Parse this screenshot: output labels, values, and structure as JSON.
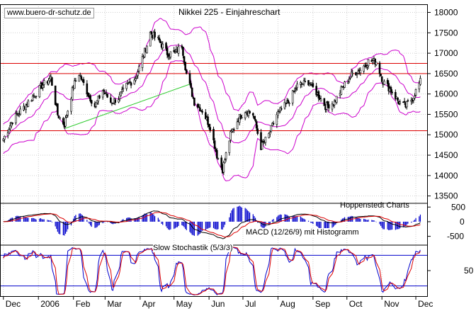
{
  "watermark": "www.buero-dr-schutz.de",
  "source_label": "Hoppenstedt Charts",
  "colors": {
    "bollinger": "#cc00cc",
    "support": "#dd0000",
    "trendline": "#33cc33",
    "macd_hist": "#0000cc",
    "macd_line": "#000000",
    "macd_signal": "#dd0000",
    "stoch_k": "#0000cc",
    "stoch_d": "#dd0000"
  },
  "chart_data": [
    {
      "type": "candlestick",
      "title": "Nikkei 225 - Einjahreschart",
      "x_tick_labels": [
        "Dec",
        "2006",
        "Feb",
        "Mar",
        "Apr",
        "May",
        "Jun",
        "Jul",
        "Aug",
        "Sep",
        "Oct",
        "Nov",
        "Dec"
      ],
      "y_tick_labels": [
        "18000",
        "17500",
        "17000",
        "16500",
        "16000",
        "15500",
        "15000",
        "14500",
        "14000",
        "13500"
      ],
      "ylim": [
        13250,
        18200
      ],
      "grid": true,
      "horizontal_lines": [
        16750,
        16500,
        15100
      ],
      "trendline": {
        "from": [
          "2006-01-24",
          15150
        ],
        "to": [
          "2006-05-16",
          16250
        ]
      },
      "close_anchors": [
        [
          "2005-12-01",
          14900
        ],
        [
          "2005-12-10",
          15400
        ],
        [
          "2005-12-20",
          15700
        ],
        [
          "2006-01-04",
          16200
        ],
        [
          "2006-01-12",
          16400
        ],
        [
          "2006-01-18",
          15500
        ],
        [
          "2006-01-24",
          15250
        ],
        [
          "2006-02-01",
          16200
        ],
        [
          "2006-02-06",
          16500
        ],
        [
          "2006-02-14",
          16000
        ],
        [
          "2006-02-20",
          15700
        ],
        [
          "2006-02-27",
          16100
        ],
        [
          "2006-03-06",
          15800
        ],
        [
          "2006-03-13",
          15900
        ],
        [
          "2006-03-20",
          16200
        ],
        [
          "2006-03-28",
          16400
        ],
        [
          "2006-04-07",
          17200
        ],
        [
          "2006-04-10",
          17500
        ],
        [
          "2006-04-18",
          17300
        ],
        [
          "2006-04-25",
          17000
        ],
        [
          "2006-05-02",
          17000
        ],
        [
          "2006-05-08",
          17200
        ],
        [
          "2006-05-12",
          16500
        ],
        [
          "2006-05-19",
          15800
        ],
        [
          "2006-05-26",
          15600
        ],
        [
          "2006-06-02",
          15200
        ],
        [
          "2006-06-08",
          14500
        ],
        [
          "2006-06-13",
          14150
        ],
        [
          "2006-06-20",
          15000
        ],
        [
          "2006-06-27",
          15400
        ],
        [
          "2006-07-03",
          15600
        ],
        [
          "2006-07-10",
          15500
        ],
        [
          "2006-07-17",
          14700
        ],
        [
          "2006-07-24",
          15000
        ],
        [
          "2006-07-31",
          15500
        ],
        [
          "2006-08-10",
          15800
        ],
        [
          "2006-08-18",
          16200
        ],
        [
          "2006-08-28",
          16300
        ],
        [
          "2006-09-05",
          16000
        ],
        [
          "2006-09-12",
          15700
        ],
        [
          "2006-09-20",
          15800
        ],
        [
          "2006-09-28",
          16200
        ],
        [
          "2006-10-06",
          16500
        ],
        [
          "2006-10-13",
          16600
        ],
        [
          "2006-10-20",
          16800
        ],
        [
          "2006-10-27",
          16800
        ],
        [
          "2006-11-02",
          16300
        ],
        [
          "2006-11-09",
          16100
        ],
        [
          "2006-11-16",
          15800
        ],
        [
          "2006-11-22",
          15700
        ],
        [
          "2006-11-28",
          15900
        ],
        [
          "2006-12-05",
          16300
        ]
      ]
    },
    {
      "type": "bar",
      "title": "",
      "series_label": "MACD (12/26/9) mit Histogramm",
      "y_tick_labels": [
        "500",
        "0",
        "-500"
      ],
      "ylim": [
        -800,
        700
      ]
    },
    {
      "type": "line",
      "title": "Slow Stochastik (5/3/3)",
      "y_tick_labels": [
        "50"
      ],
      "ylim": [
        0,
        100
      ],
      "reference_lines": [
        80,
        20
      ]
    }
  ]
}
